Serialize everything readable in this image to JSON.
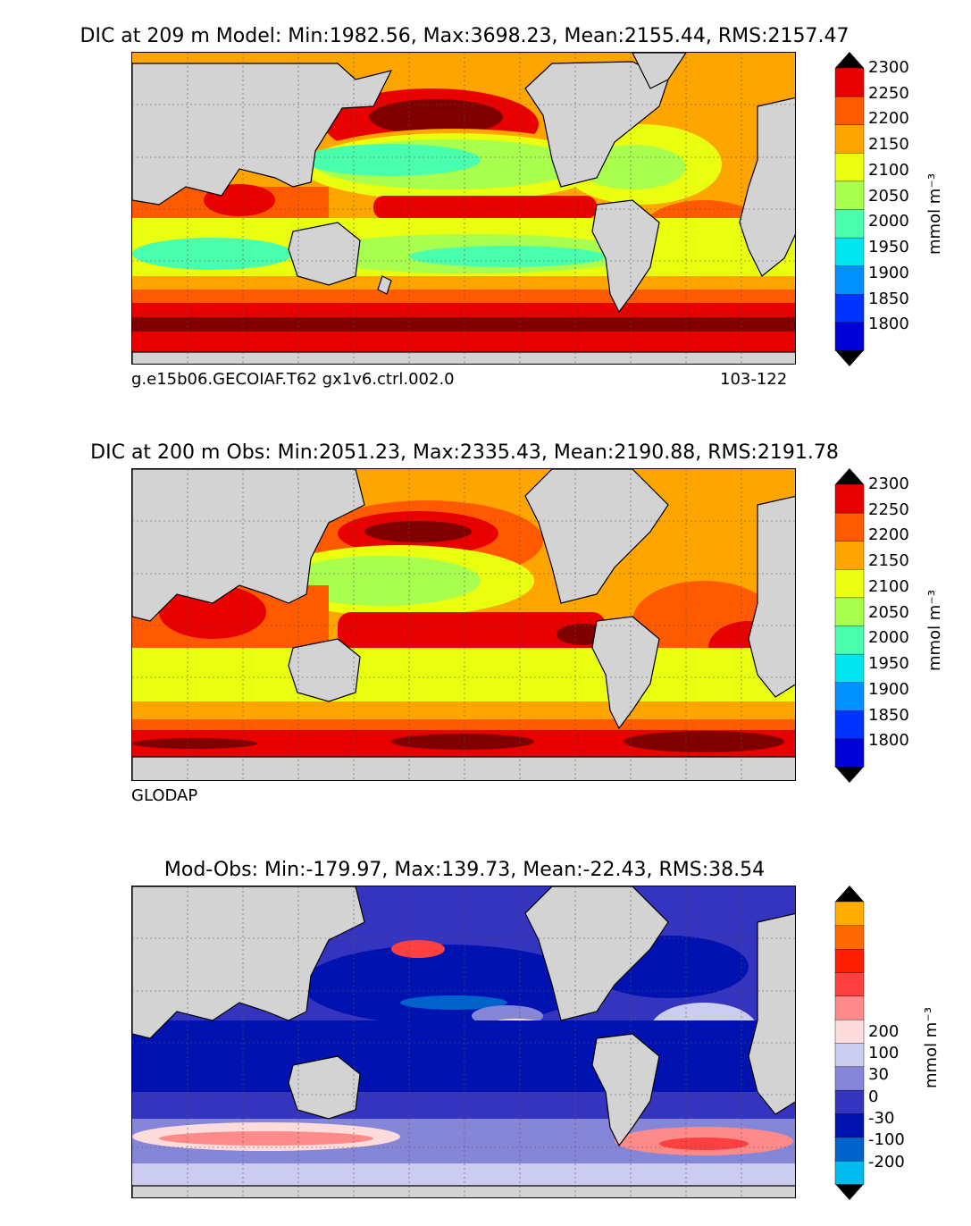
{
  "panels": [
    {
      "id": "model",
      "title": "DIC at 209 m Model: Min:1982.56, Max:3698.23, Mean:2155.44, RMS:2157.47",
      "caption_left": "g.e15b06.GECOIAF.T62 gx1v6.ctrl.002.0",
      "caption_right": "103-122",
      "colorbar": {
        "unit": "mmol m⁻³",
        "levels": [
          "1800",
          "1850",
          "1900",
          "1950",
          "2000",
          "2050",
          "2100",
          "2150",
          "2200",
          "2250",
          "2300"
        ],
        "colors": [
          "#00007f",
          "#0000d9",
          "#0033ff",
          "#0090ff",
          "#00e5f0",
          "#49ffad",
          "#a9ff4d",
          "#eaff10",
          "#ffa500",
          "#ff5a00",
          "#e80000",
          "#800000"
        ]
      }
    },
    {
      "id": "obs",
      "title": "DIC at 200 m Obs: Min:2051.23, Max:2335.43, Mean:2190.88, RMS:2191.78",
      "caption_left": "GLODAP",
      "colorbar": {
        "unit": "mmol m⁻³",
        "levels": [
          "1800",
          "1850",
          "1900",
          "1950",
          "2000",
          "2050",
          "2100",
          "2150",
          "2200",
          "2250",
          "2300"
        ],
        "colors": [
          "#00007f",
          "#0000d9",
          "#0033ff",
          "#0090ff",
          "#00e5f0",
          "#49ffad",
          "#a9ff4d",
          "#eaff10",
          "#ffa500",
          "#ff5a00",
          "#e80000",
          "#800000"
        ]
      }
    },
    {
      "id": "diff",
      "title": "Mod-Obs: Min:-179.97, Max:139.73, Mean:-22.43, RMS:38.54",
      "colorbar": {
        "unit": "mmol m⁻³",
        "levels": [
          "-200",
          "-100",
          "-30",
          "0",
          "30",
          "100",
          "200"
        ],
        "colors": [
          "#00ffff",
          "#00bbee",
          "#0063cc",
          "#0012b0",
          "#3434bf",
          "#8686d9",
          "#ccccf0",
          "#ffdcdc",
          "#ff8a8a",
          "#ff4040",
          "#ff1e00",
          "#ff6a00",
          "#ffae00",
          "#ffff33"
        ]
      }
    }
  ],
  "colors": {
    "land": "#d3d3d3",
    "coast": "#000000",
    "grid": "#555555"
  }
}
